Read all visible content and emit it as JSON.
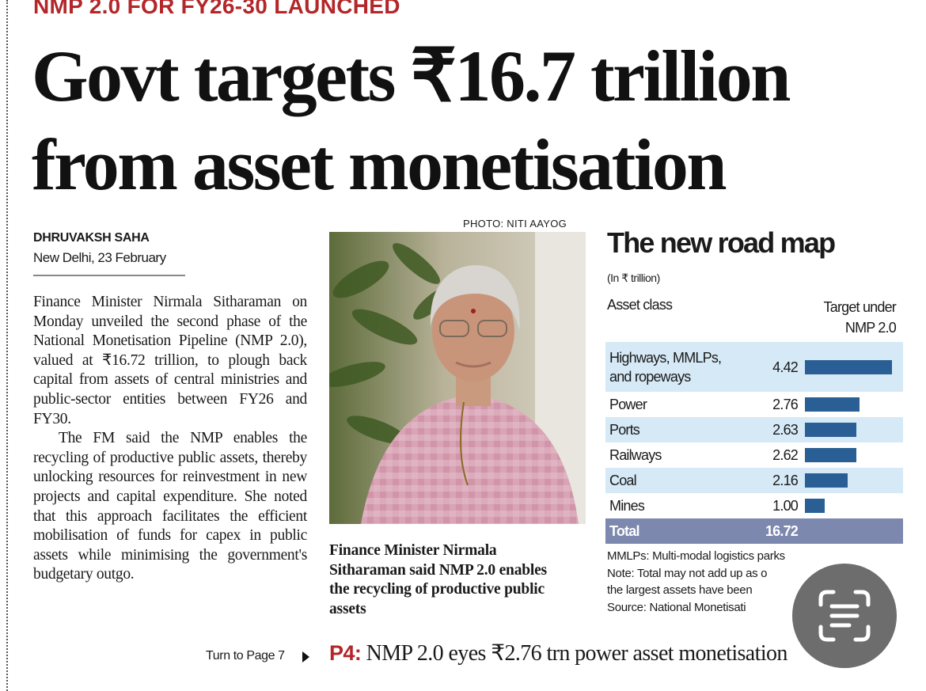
{
  "kicker": "NMP 2.0 FOR FY26-30 LAUNCHED",
  "headline": "Govt targets ₹16.7 trillion from asset monetisation",
  "byline": {
    "author": "DHRUVAKSH SAHA",
    "dateline": "New Delhi, 23 February"
  },
  "body": [
    "Finance Minister Nirmala Sitharaman on Monday unveiled the second phase of the National Monetisation Pipeline (NMP 2.0), valued at ₹16.72 trillion, to plough back capital from assets of central ministries and public-sector entities between FY26 and FY30.",
    "The FM said the NMP enables the recycling of productive public assets, thereby unlocking resources for reinvestment in new projects and capital expenditure. She noted that this approach facilitates the efficient mobilisation of funds for capex in public assets while minimising the government's budgetary outgo."
  ],
  "jump": "Turn to Page 7",
  "photo": {
    "credit": "PHOTO: NITI AAYOG",
    "caption": "Finance Minister Nirmala Sitharaman said NMP 2.0 enables the recycling of productive public assets"
  },
  "table": {
    "title": "The new road map",
    "unit": "(In ₹ trillion)",
    "columns": [
      "Asset class",
      "Target under NMP 2.0"
    ],
    "categories": [
      "Highways, MMLPs, and ropeways",
      "Power",
      "Ports",
      "Railways",
      "Coal",
      "Mines"
    ],
    "values": [
      4.42,
      2.76,
      2.63,
      2.62,
      2.16,
      1.0
    ],
    "value_labels": [
      "4.42",
      "2.76",
      "2.63",
      "2.62",
      "2.16",
      "1.00"
    ],
    "bar_color": "#2a5f95",
    "total_label": "Total",
    "total": 16.72,
    "notes": [
      "MMLPs: Multi-modal logistics parks",
      "Note: Total may not add up as o",
      "the largest assets have been",
      "Source: National Monetisati"
    ]
  },
  "teaser": {
    "label": "P4:",
    "text": "NMP 2.0 eyes ₹2.76 trn power asset monetisation"
  }
}
